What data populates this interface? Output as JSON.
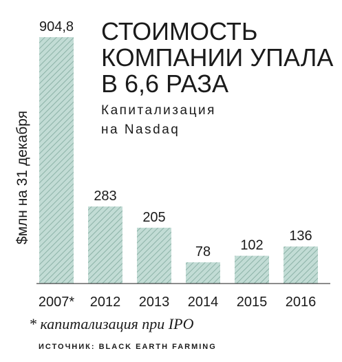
{
  "chart_data": {
    "type": "bar",
    "title_lines": [
      "СТОИМОСТЬ",
      "КОМПАНИИ УПАЛА",
      "В 6,6 РАЗА"
    ],
    "subtitle_lines": [
      "Капитализация",
      "на Nasdaq"
    ],
    "ylabel": "$млн на 31 декабря",
    "categories": [
      "2007*",
      "2012",
      "2013",
      "2014",
      "2015",
      "2016"
    ],
    "values": [
      904.8,
      283,
      205,
      78,
      102,
      136
    ],
    "value_labels": [
      "904,8",
      "283",
      "205",
      "78",
      "102",
      "136"
    ],
    "ylim": [
      0,
      904.8
    ],
    "grid": false,
    "footnote": "* капитализация при IPO",
    "source": "ИСТОЧНИК: BLACK EARTH FARMING"
  },
  "colors": {
    "bar_fill": "#c2dcd5",
    "bar_hatch": "#7fa89c",
    "text": "#1a1a1a",
    "axis": "#1a1a1a"
  }
}
